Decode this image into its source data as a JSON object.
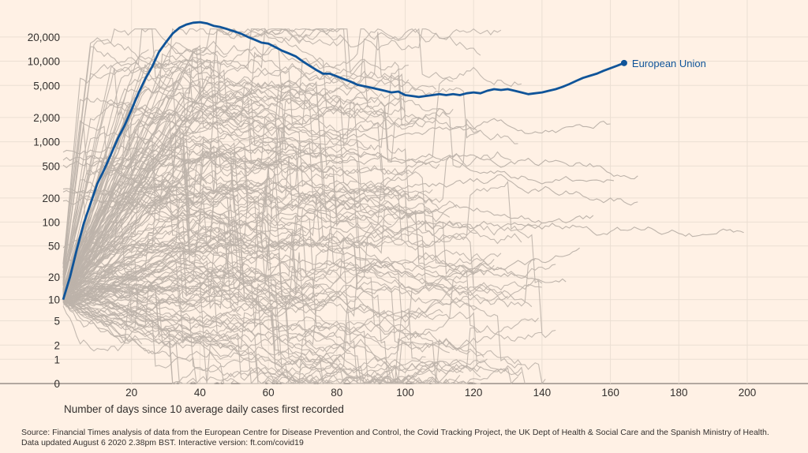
{
  "chart_data": {
    "type": "line",
    "yscale": "symlog",
    "xlabel": "Number of days since 10 average daily cases first recorded",
    "ylabel": "",
    "xlim": [
      0,
      215
    ],
    "ylim": [
      0,
      35000
    ],
    "x_ticks": [
      20,
      40,
      60,
      80,
      100,
      120,
      140,
      160,
      180,
      200
    ],
    "y_ticks": [
      0,
      1,
      2,
      5,
      10,
      20,
      50,
      100,
      200,
      500,
      1000,
      2000,
      5000,
      10000,
      20000
    ],
    "y_tick_labels": [
      "0",
      "1",
      "2",
      "5",
      "10",
      "20",
      "50",
      "100",
      "200",
      "500",
      "1,000",
      "2,000",
      "5,000",
      "10,000",
      "20,000"
    ],
    "grid": true,
    "colors": {
      "highlight": "#0f5499",
      "background_lines": "#bdb3aa",
      "background": "#fff1e5",
      "grid": "#ebdfd3"
    },
    "highlight_series": {
      "name": "European Union",
      "points": [
        [
          0,
          10
        ],
        [
          2,
          20
        ],
        [
          4,
          45
        ],
        [
          6,
          95
        ],
        [
          8,
          170
        ],
        [
          10,
          300
        ],
        [
          12,
          450
        ],
        [
          14,
          700
        ],
        [
          16,
          1100
        ],
        [
          18,
          1600
        ],
        [
          20,
          2500
        ],
        [
          22,
          4000
        ],
        [
          24,
          6000
        ],
        [
          26,
          8500
        ],
        [
          28,
          13000
        ],
        [
          30,
          17000
        ],
        [
          32,
          22000
        ],
        [
          34,
          26000
        ],
        [
          36,
          28500
        ],
        [
          38,
          30000
        ],
        [
          40,
          30500
        ],
        [
          42,
          29500
        ],
        [
          44,
          27500
        ],
        [
          46,
          26500
        ],
        [
          48,
          25000
        ],
        [
          50,
          23500
        ],
        [
          52,
          22000
        ],
        [
          54,
          20000
        ],
        [
          56,
          18500
        ],
        [
          58,
          17000
        ],
        [
          60,
          16500
        ],
        [
          62,
          15000
        ],
        [
          64,
          13500
        ],
        [
          66,
          12500
        ],
        [
          68,
          11500
        ],
        [
          70,
          10000
        ],
        [
          72,
          8800
        ],
        [
          74,
          7800
        ],
        [
          76,
          7000
        ],
        [
          78,
          7000
        ],
        [
          80,
          6500
        ],
        [
          82,
          6000
        ],
        [
          84,
          5600
        ],
        [
          86,
          5100
        ],
        [
          88,
          4900
        ],
        [
          90,
          4700
        ],
        [
          92,
          4500
        ],
        [
          94,
          4300
        ],
        [
          96,
          4100
        ],
        [
          98,
          4200
        ],
        [
          100,
          3800
        ],
        [
          102,
          3700
        ],
        [
          104,
          3600
        ],
        [
          106,
          3700
        ],
        [
          108,
          3800
        ],
        [
          110,
          3900
        ],
        [
          112,
          3800
        ],
        [
          114,
          3900
        ],
        [
          116,
          3800
        ],
        [
          118,
          4000
        ],
        [
          120,
          4100
        ],
        [
          122,
          4000
        ],
        [
          124,
          4300
        ],
        [
          126,
          4500
        ],
        [
          128,
          4400
        ],
        [
          130,
          4500
        ],
        [
          132,
          4300
        ],
        [
          134,
          4100
        ],
        [
          136,
          3900
        ],
        [
          138,
          4000
        ],
        [
          140,
          4100
        ],
        [
          142,
          4300
        ],
        [
          144,
          4500
        ],
        [
          146,
          4800
        ],
        [
          148,
          5200
        ],
        [
          150,
          5700
        ],
        [
          152,
          6200
        ],
        [
          154,
          6600
        ],
        [
          156,
          7000
        ],
        [
          158,
          7600
        ],
        [
          160,
          8200
        ],
        [
          162,
          8800
        ],
        [
          164,
          9500
        ]
      ]
    },
    "background_series_count": 180,
    "annotations": [
      {
        "text": "European Union",
        "x": 164,
        "y": 9500
      }
    ]
  },
  "source": {
    "line1": "Source: Financial Times analysis of data from the European Centre for Disease Prevention and Control, the Covid Tracking Project, the UK Dept of Health & Social Care and the Spanish Ministry of Health.",
    "line2": "Data updated August 6 2020 2.38pm BST. Interactive version: ft.com/covid19"
  }
}
